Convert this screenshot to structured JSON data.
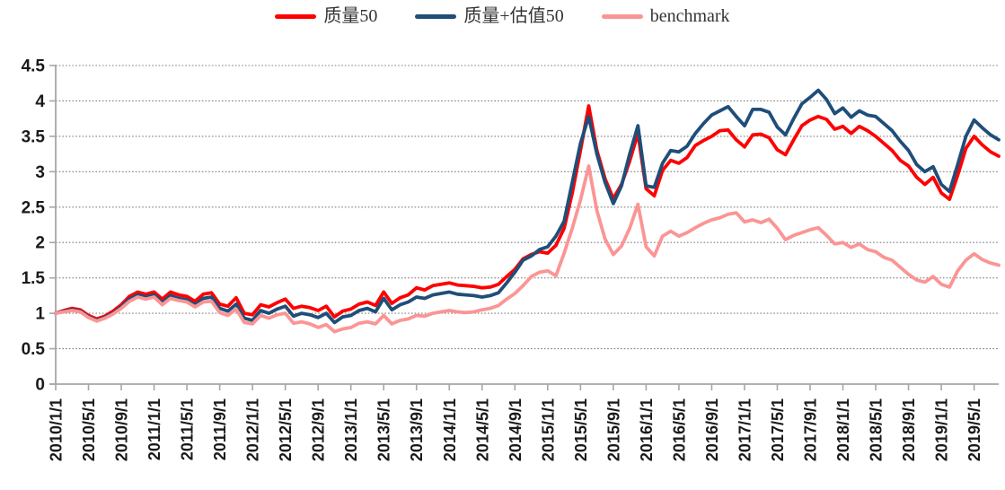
{
  "chart_data": {
    "type": "line",
    "title": "",
    "xlabel": "",
    "ylabel": "",
    "frequency": "monthly",
    "x_start": "2010/1",
    "x_end": "2019/8",
    "ylim": [
      0,
      4.5
    ],
    "grid": "horizontal-dotted",
    "legend_position": "top-center",
    "y_tick_labels": [
      "0",
      "0.5",
      "1",
      "1.5",
      "2",
      "2.5",
      "3",
      "3.5",
      "4",
      "4.5"
    ],
    "y_tick_values": [
      0,
      0.5,
      1,
      1.5,
      2,
      2.5,
      3,
      3.5,
      4,
      4.5
    ],
    "x_tick_labels": [
      "2010/1/1",
      "2010/5/1",
      "2010/9/1",
      "2011/1/1",
      "2011/5/1",
      "2011/9/1",
      "2012/1/1",
      "2012/5/1",
      "2012/9/1",
      "2013/1/1",
      "2013/5/1",
      "2013/9/1",
      "2014/1/1",
      "2014/5/1",
      "2014/9/1",
      "2015/1/1",
      "2015/5/1",
      "2015/9/1",
      "2016/1/1",
      "2016/5/1",
      "2016/9/1",
      "2017/1/1",
      "2017/5/1",
      "2017/9/1",
      "2018/1/1",
      "2018/5/1",
      "2018/9/1",
      "2019/1/1",
      "2019/5/1"
    ],
    "x_tick_every_n_months": 4,
    "axis_color": "#a6a6a6",
    "grid_color": "#7f7f7f",
    "tick_label_color": "#1a1a1a",
    "series": [
      {
        "name": "质量50",
        "color": "#FF0000",
        "values": [
          1.0,
          1.04,
          1.07,
          1.05,
          0.97,
          0.92,
          0.96,
          1.03,
          1.12,
          1.24,
          1.3,
          1.27,
          1.3,
          1.2,
          1.3,
          1.26,
          1.24,
          1.17,
          1.27,
          1.29,
          1.13,
          1.1,
          1.22,
          1.0,
          0.98,
          1.12,
          1.09,
          1.15,
          1.2,
          1.07,
          1.1,
          1.08,
          1.04,
          1.1,
          0.95,
          1.03,
          1.06,
          1.13,
          1.16,
          1.11,
          1.3,
          1.14,
          1.22,
          1.26,
          1.36,
          1.33,
          1.39,
          1.41,
          1.43,
          1.4,
          1.39,
          1.38,
          1.36,
          1.37,
          1.41,
          1.52,
          1.62,
          1.77,
          1.83,
          1.87,
          1.85,
          1.96,
          2.2,
          2.7,
          3.3,
          3.93,
          3.3,
          2.9,
          2.62,
          2.82,
          3.15,
          3.54,
          2.76,
          2.66,
          3.02,
          3.16,
          3.12,
          3.2,
          3.37,
          3.44,
          3.5,
          3.58,
          3.59,
          3.45,
          3.35,
          3.52,
          3.53,
          3.48,
          3.31,
          3.24,
          3.45,
          3.65,
          3.73,
          3.78,
          3.74,
          3.6,
          3.64,
          3.54,
          3.64,
          3.58,
          3.5,
          3.4,
          3.3,
          3.16,
          3.08,
          2.92,
          2.82,
          2.92,
          2.7,
          2.61,
          2.95,
          3.33,
          3.5,
          3.38,
          3.28,
          3.22
        ]
      },
      {
        "name": "质量+估值50",
        "color": "#1F4E79",
        "values": [
          1.0,
          1.03,
          1.05,
          1.03,
          0.95,
          0.9,
          0.94,
          1.0,
          1.09,
          1.2,
          1.26,
          1.23,
          1.26,
          1.15,
          1.25,
          1.21,
          1.19,
          1.12,
          1.21,
          1.23,
          1.07,
          1.03,
          1.13,
          0.93,
          0.9,
          1.04,
          1.0,
          1.06,
          1.1,
          0.96,
          1.0,
          0.98,
          0.94,
          1.0,
          0.87,
          0.95,
          0.97,
          1.04,
          1.07,
          1.02,
          1.21,
          1.05,
          1.12,
          1.16,
          1.23,
          1.21,
          1.26,
          1.28,
          1.3,
          1.27,
          1.26,
          1.25,
          1.23,
          1.25,
          1.29,
          1.43,
          1.58,
          1.75,
          1.81,
          1.9,
          1.94,
          2.09,
          2.3,
          2.85,
          3.4,
          3.78,
          3.25,
          2.85,
          2.55,
          2.8,
          3.25,
          3.65,
          2.8,
          2.78,
          3.12,
          3.3,
          3.28,
          3.36,
          3.54,
          3.68,
          3.8,
          3.86,
          3.92,
          3.78,
          3.65,
          3.88,
          3.88,
          3.84,
          3.63,
          3.52,
          3.75,
          3.96,
          4.05,
          4.15,
          4.02,
          3.82,
          3.9,
          3.77,
          3.86,
          3.8,
          3.78,
          3.68,
          3.58,
          3.43,
          3.3,
          3.1,
          3.0,
          3.07,
          2.82,
          2.72,
          3.1,
          3.5,
          3.73,
          3.62,
          3.52,
          3.45
        ]
      },
      {
        "name": "benchmark",
        "color": "#FB9595",
        "values": [
          1.0,
          1.02,
          1.04,
          1.02,
          0.94,
          0.89,
          0.93,
          0.99,
          1.07,
          1.17,
          1.23,
          1.2,
          1.23,
          1.12,
          1.21,
          1.18,
          1.16,
          1.09,
          1.16,
          1.17,
          1.01,
          0.97,
          1.06,
          0.87,
          0.85,
          0.97,
          0.93,
          0.98,
          1.0,
          0.86,
          0.88,
          0.85,
          0.8,
          0.84,
          0.74,
          0.78,
          0.8,
          0.86,
          0.88,
          0.85,
          0.97,
          0.85,
          0.9,
          0.92,
          0.97,
          0.96,
          1.0,
          1.02,
          1.04,
          1.02,
          1.01,
          1.02,
          1.05,
          1.07,
          1.11,
          1.2,
          1.28,
          1.39,
          1.52,
          1.58,
          1.6,
          1.53,
          1.85,
          2.2,
          2.6,
          3.08,
          2.45,
          2.05,
          1.83,
          1.95,
          2.2,
          2.54,
          1.94,
          1.81,
          2.09,
          2.16,
          2.09,
          2.14,
          2.21,
          2.27,
          2.32,
          2.35,
          2.4,
          2.42,
          2.29,
          2.32,
          2.28,
          2.33,
          2.2,
          2.04,
          2.1,
          2.14,
          2.18,
          2.21,
          2.1,
          1.98,
          2.0,
          1.93,
          1.98,
          1.9,
          1.87,
          1.79,
          1.75,
          1.65,
          1.55,
          1.47,
          1.44,
          1.52,
          1.41,
          1.37,
          1.6,
          1.75,
          1.84,
          1.76,
          1.71,
          1.68
        ]
      }
    ]
  }
}
